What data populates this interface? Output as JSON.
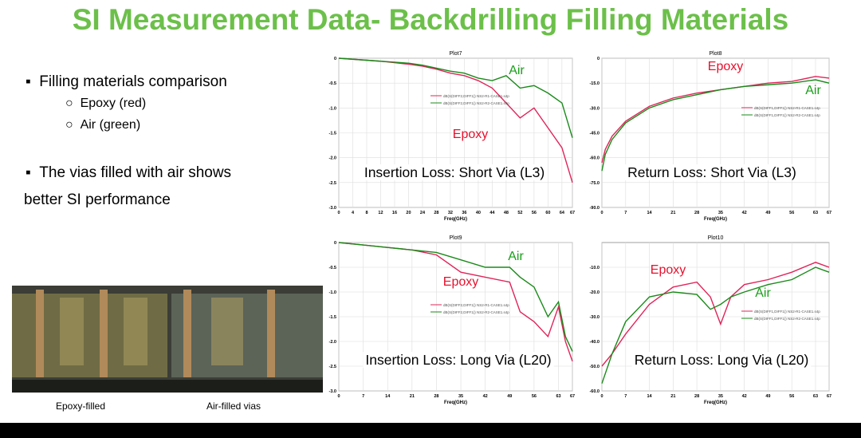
{
  "slide": {
    "title": "SI Measurement Data- Backdrilling Filling Materials",
    "bullets": [
      "Filling materials comparison",
      "The vias filled with air shows",
      "better SI performance"
    ],
    "sub_bullets": [
      "Epoxy (red)",
      "Air  (green)"
    ],
    "captions": [
      "Epoxy-filled",
      "Air-filled vias"
    ]
  },
  "chart_data": [
    {
      "type": "line",
      "title": "Plot7",
      "xlabel": "Freq(GHz)",
      "label": "Insertion Loss: Short Via (L3)",
      "annotations": [
        {
          "text": "Air",
          "color": "#1a9e1a"
        },
        {
          "text": "Epoxy",
          "color": "#e8102c"
        }
      ],
      "x": [
        0,
        4,
        8,
        12,
        16,
        20,
        24,
        28,
        32,
        36,
        40,
        44,
        48,
        52,
        56,
        60,
        64,
        67
      ],
      "series": [
        {
          "name": "dB(S(DIFF2,DIFF1)) NS2-R1-CASE1.s4p",
          "color": "#e0245a",
          "values": [
            0,
            -0.02,
            -0.04,
            -0.06,
            -0.09,
            -0.12,
            -0.16,
            -0.22,
            -0.3,
            -0.35,
            -0.45,
            -0.6,
            -0.9,
            -1.2,
            -1.0,
            -1.4,
            -1.8,
            -2.5
          ]
        },
        {
          "name": "dB(S(DIFF2,DIFF1)) NS2-R2-CASE1.s4p",
          "color": "#1a8a1a",
          "values": [
            0,
            -0.02,
            -0.04,
            -0.06,
            -0.08,
            -0.1,
            -0.14,
            -0.2,
            -0.26,
            -0.3,
            -0.4,
            -0.45,
            -0.35,
            -0.6,
            -0.55,
            -0.7,
            -0.9,
            -1.6
          ]
        }
      ],
      "xlim": [
        0,
        67
      ],
      "xticks": [
        0,
        4,
        8,
        12,
        16,
        20,
        24,
        28,
        32,
        36,
        40,
        44,
        48,
        52,
        56,
        60,
        64,
        67
      ],
      "ylim": [
        -3,
        0
      ],
      "yticks": [
        0,
        -0.5,
        {
          "value": -1,
          "label": "-1.0"
        },
        -1.5,
        {
          "value": -2,
          "label": "-2.0"
        },
        -2.5,
        {
          "value": -3,
          "label": "-3.0"
        }
      ],
      "grid": true
    },
    {
      "type": "line",
      "title": "Plot8",
      "xlabel": "Freq(GHz)",
      "label": "Return Loss: Short Via (L3)",
      "annotations": [
        {
          "text": "Epoxy",
          "color": "#e8102c"
        },
        {
          "text": "Air",
          "color": "#1a9e1a"
        }
      ],
      "x": [
        0,
        1,
        3,
        7,
        14,
        21,
        28,
        35,
        42,
        49,
        56,
        63,
        67
      ],
      "series": [
        {
          "name": "dB(S(DIFF1,DIFF1)) NS2-R1-CASE1.s4p",
          "color": "#e0245a",
          "values": [
            -63,
            -55,
            -47,
            -38,
            -29,
            -24,
            -21,
            -19,
            -17,
            -15,
            -14,
            -11,
            -12
          ]
        },
        {
          "name": "dB(S(DIFF1,DIFF1)) NS2-R2-CASE1.s4p",
          "color": "#1a8a1a",
          "values": [
            -68,
            -58,
            -49,
            -39,
            -30,
            -25,
            -22,
            -19,
            -17,
            -16,
            -15,
            -13,
            -15
          ]
        }
      ],
      "xlim": [
        0,
        67
      ],
      "xticks": [
        0,
        7,
        14,
        21,
        28,
        35,
        42,
        49,
        56,
        63,
        67
      ],
      "ylim": [
        -90,
        0
      ],
      "yticks": [
        0,
        {
          "value": -15,
          "label": "-15.0"
        },
        {
          "value": -30,
          "label": "-30.0"
        },
        {
          "value": -45,
          "label": "-45.0"
        },
        {
          "value": -60,
          "label": "-60.0"
        },
        {
          "value": -75,
          "label": "-75.0"
        },
        {
          "value": -90,
          "label": "-90.0"
        }
      ],
      "grid": true
    },
    {
      "type": "line",
      "title": "Plot9",
      "xlabel": "Freq(GHz)",
      "label": "Insertion Loss: Long Via (L20)",
      "annotations": [
        {
          "text": "Air",
          "color": "#1a9e1a"
        },
        {
          "text": "Epoxy",
          "color": "#e8102c"
        }
      ],
      "x": [
        0,
        7,
        14,
        21,
        28,
        35,
        42,
        49,
        52,
        56,
        60,
        63,
        65,
        67
      ],
      "series": [
        {
          "name": "dB(S(DIFF2,DIFF1)) NS2-R1-CASE1.s4p",
          "color": "#e0245a",
          "values": [
            0,
            -0.05,
            -0.1,
            -0.15,
            -0.25,
            -0.6,
            -0.7,
            -0.8,
            -1.4,
            -1.6,
            -1.9,
            -1.3,
            -2.0,
            -2.4
          ]
        },
        {
          "name": "dB(S(DIFF2,DIFF1)) NS2-R2-CASE1.s4p",
          "color": "#1a8a1a",
          "values": [
            0,
            -0.05,
            -0.1,
            -0.15,
            -0.2,
            -0.35,
            -0.5,
            -0.5,
            -0.7,
            -0.9,
            -1.5,
            -1.2,
            -1.9,
            -2.2
          ]
        }
      ],
      "xlim": [
        0,
        67
      ],
      "xticks": [
        0,
        7,
        14,
        21,
        28,
        35,
        42,
        49,
        56,
        63,
        67
      ],
      "ylim": [
        -3,
        0
      ],
      "yticks": [
        0,
        -0.5,
        {
          "value": -1,
          "label": "-1.0"
        },
        -1.5,
        {
          "value": -2,
          "label": "-2.0"
        },
        -2.5,
        {
          "value": -3,
          "label": "-3.0"
        }
      ],
      "grid": true
    },
    {
      "type": "line",
      "title": "Plot10",
      "xlabel": "Freq(GHz)",
      "label": "Return Loss: Long Via (L20)",
      "annotations": [
        {
          "text": "Epoxy",
          "color": "#e8102c"
        },
        {
          "text": "Air",
          "color": "#1a9e1a"
        }
      ],
      "x": [
        0,
        3,
        7,
        14,
        21,
        28,
        32,
        35,
        38,
        42,
        49,
        56,
        63,
        67
      ],
      "series": [
        {
          "name": "dB(S(DIFF1,DIFF1)) NS2-R1-CASE1.s4p",
          "color": "#e0245a",
          "values": [
            -50,
            -45,
            -37,
            -25,
            -18,
            -16,
            -22,
            -33,
            -22,
            -17,
            -15,
            -12,
            -8,
            -10
          ]
        },
        {
          "name": "dB(S(DIFF1,DIFF1)) NS2-R2-CASE1.s4p",
          "color": "#1a8a1a",
          "values": [
            -57,
            -45,
            -32,
            -22,
            -20,
            -21,
            -27,
            -25,
            -22,
            -20,
            -17,
            -15,
            -10,
            -12
          ]
        }
      ],
      "xlim": [
        0,
        67
      ],
      "xticks": [
        0,
        7,
        14,
        21,
        28,
        35,
        42,
        49,
        56,
        63,
        67
      ],
      "ylim": [
        -60,
        0
      ],
      "yticks": [
        {
          "value": -10,
          "label": "-10.0"
        },
        {
          "value": -20,
          "label": "-20.0"
        },
        {
          "value": -30,
          "label": "-30.0"
        },
        {
          "value": -40,
          "label": "-40.0"
        },
        {
          "value": -50,
          "label": "-50.0"
        },
        {
          "value": -60,
          "label": "-60.0"
        }
      ],
      "grid": true
    }
  ]
}
